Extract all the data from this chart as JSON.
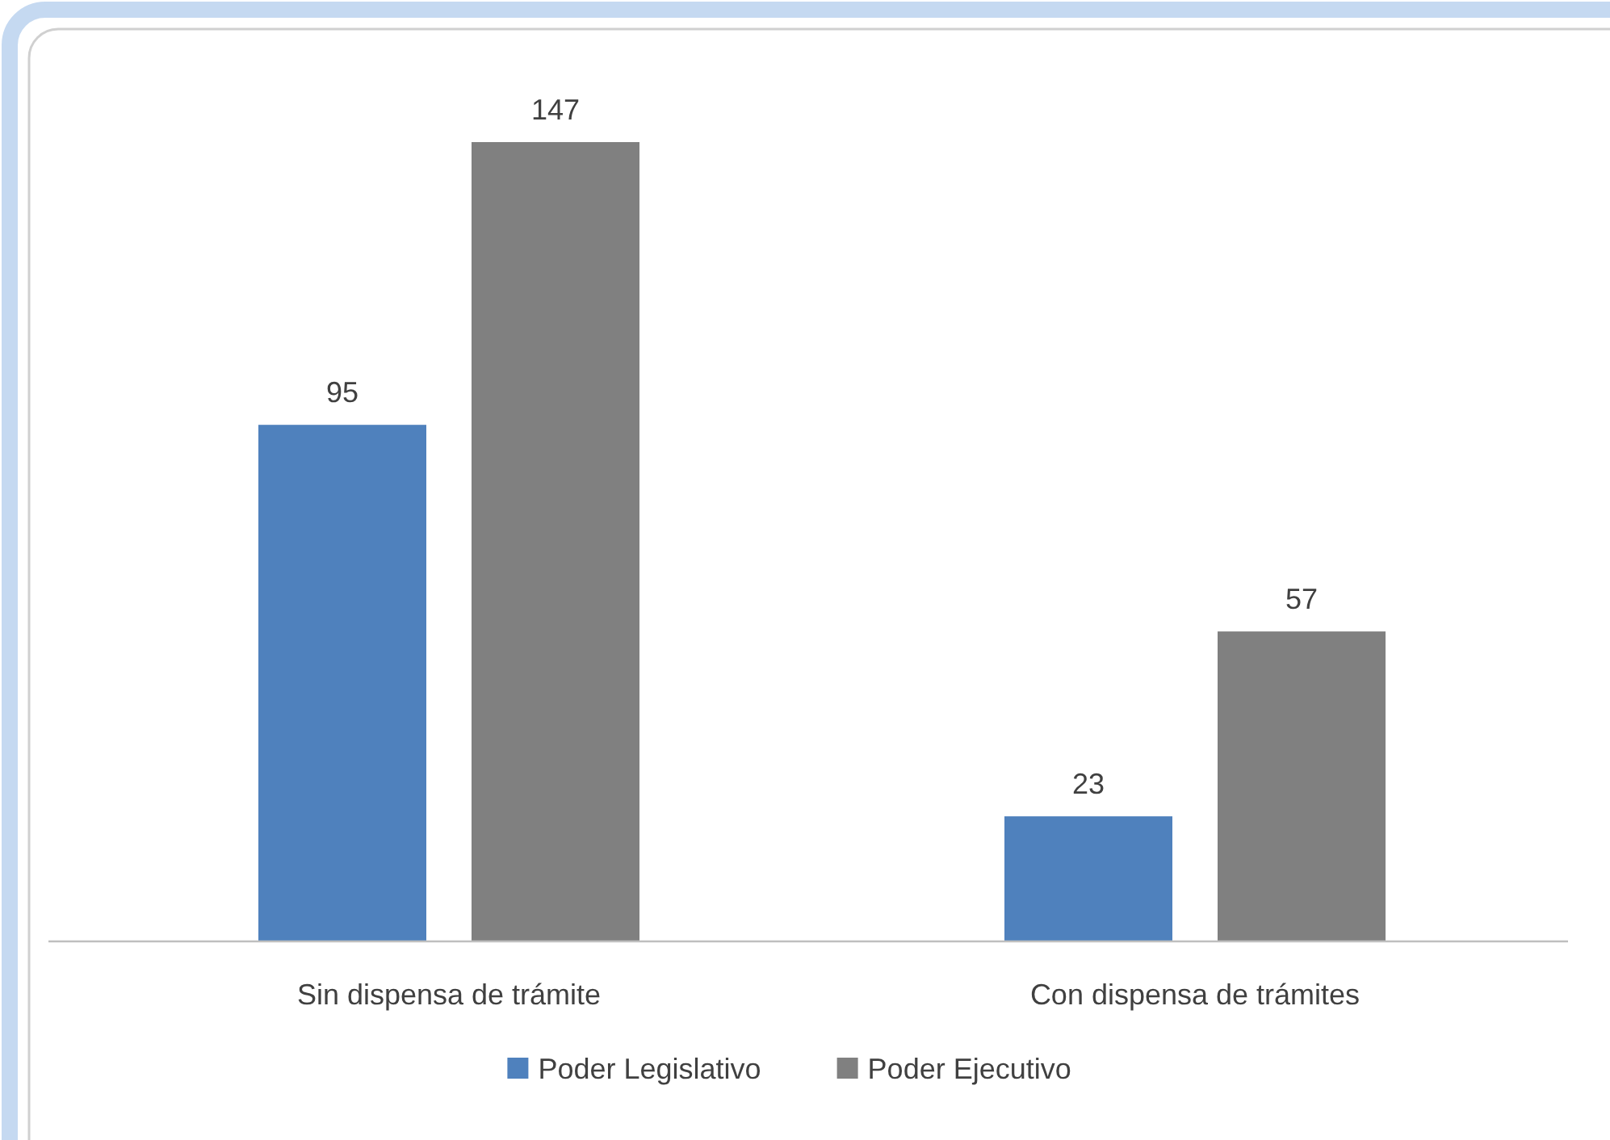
{
  "chart_data": {
    "type": "bar",
    "categories": [
      "Sin dispensa de trámite",
      "Con dispensa de trámites"
    ],
    "series": [
      {
        "name": "Poder Legislativo",
        "color": "#4f81bd",
        "values": [
          95,
          23
        ]
      },
      {
        "name": "Poder Ejecutivo",
        "color": "#808080",
        "values": [
          147,
          57
        ]
      }
    ],
    "data_labels": true,
    "legend": "bottom",
    "grid": false
  }
}
